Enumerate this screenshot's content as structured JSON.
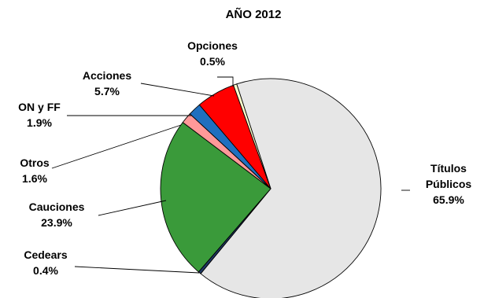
{
  "chart_data": {
    "type": "pie",
    "title": "AÑO 2012",
    "legend": "none",
    "slices": [
      {
        "label": "Títulos Públicos",
        "label_lines": [
          "Títulos",
          "Públicos"
        ],
        "value": 65.9,
        "value_text": "65.9%",
        "color": "#e6e6e6"
      },
      {
        "label": "Cedears",
        "label_lines": [
          "Cedears"
        ],
        "value": 0.4,
        "value_text": "0.4%",
        "color": "#1f3864"
      },
      {
        "label": "Cauciones",
        "label_lines": [
          "Cauciones"
        ],
        "value": 23.9,
        "value_text": "23.9%",
        "color": "#3a9a3a"
      },
      {
        "label": "Otros",
        "label_lines": [
          "Otros"
        ],
        "value": 1.6,
        "value_text": "1.6%",
        "color": "#ff9999"
      },
      {
        "label": "ON y FF",
        "label_lines": [
          "ON y FF"
        ],
        "value": 1.9,
        "value_text": "1.9%",
        "color": "#1f6fbf"
      },
      {
        "label": "Acciones",
        "label_lines": [
          "Acciones"
        ],
        "value": 5.7,
        "value_text": "5.7%",
        "color": "#ff0000"
      },
      {
        "label": "Opciones",
        "label_lines": [
          "Opciones"
        ],
        "value": 0.5,
        "value_text": "0.5%",
        "color": "#ffffcc"
      }
    ]
  }
}
